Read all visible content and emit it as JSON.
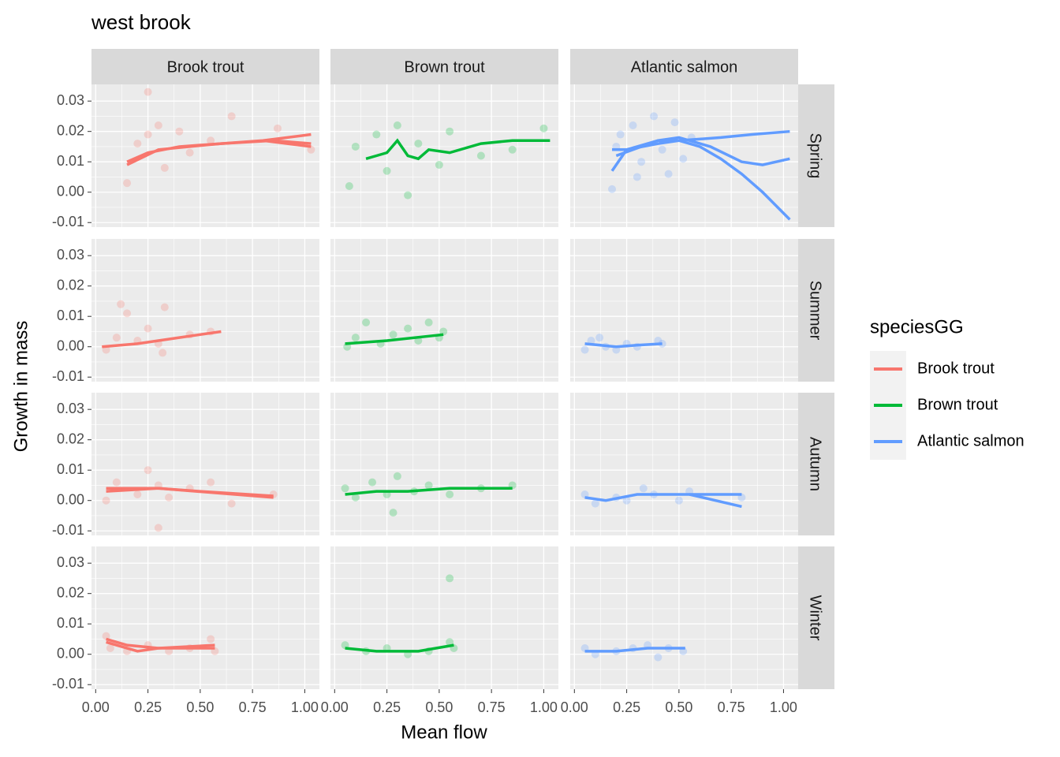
{
  "chart_data": {
    "type": "line",
    "title": "west brook",
    "x_label": "Mean flow",
    "y_label": "Growth in mass",
    "legend_title": "speciesGG",
    "columns": [
      "Brook trout",
      "Brown trout",
      "Atlantic salmon"
    ],
    "rows": [
      "Spring",
      "Summer",
      "Autumn",
      "Winter"
    ],
    "series": [
      {
        "name": "Brook trout",
        "color": "#F8766D"
      },
      {
        "name": "Brown trout",
        "color": "#00BA38"
      },
      {
        "name": "Atlantic salmon",
        "color": "#619CFF"
      }
    ],
    "xlim": [
      -0.02,
      1.07
    ],
    "ylim": [
      -0.0115,
      0.0355
    ],
    "xticks": [
      {
        "value": 0,
        "label": "0.00"
      },
      0.25,
      {
        "value": 0.5,
        "label": "0.50"
      },
      0.75,
      {
        "value": 1,
        "label": "1.00"
      }
    ],
    "yticks": [
      -0.01,
      {
        "value": 0,
        "label": "0.00"
      },
      0.01,
      0.02,
      0.03
    ],
    "grid": true,
    "panels": [
      {
        "lines": [
          {
            "x": [
              0.15,
              0.25,
              0.4,
              0.6,
              0.8,
              1.03
            ],
            "y": [
              0.01,
              0.013,
              0.015,
              0.016,
              0.017,
              0.019
            ]
          },
          {
            "x": [
              0.15,
              0.3,
              0.6,
              0.85,
              1.03
            ],
            "y": [
              0.009,
              0.014,
              0.016,
              0.017,
              0.016
            ]
          },
          {
            "x": [
              0.8,
              1.03
            ],
            "y": [
              0.017,
              0.015
            ]
          }
        ],
        "points": {
          "x": [
            0.15,
            0.2,
            0.25,
            0.3,
            0.33,
            0.4,
            0.45,
            0.55,
            0.65,
            0.87,
            1.03,
            0.25
          ],
          "y": [
            0.003,
            0.016,
            0.019,
            0.022,
            0.008,
            0.02,
            0.013,
            0.017,
            0.025,
            0.021,
            0.014,
            0.033
          ]
        }
      },
      {
        "lines": [
          {
            "x": [
              0.15,
              0.2,
              0.25,
              0.3,
              0.35,
              0.4,
              0.45,
              0.55,
              0.7,
              0.85,
              1.03
            ],
            "y": [
              0.011,
              0.012,
              0.013,
              0.017,
              0.012,
              0.011,
              0.014,
              0.013,
              0.016,
              0.017,
              0.017
            ]
          }
        ],
        "points": {
          "x": [
            0.07,
            0.1,
            0.2,
            0.25,
            0.3,
            0.4,
            0.5,
            0.55,
            0.7,
            0.85,
            1.0,
            0.35
          ],
          "y": [
            0.002,
            0.015,
            0.019,
            0.007,
            0.022,
            0.016,
            0.009,
            0.02,
            0.012,
            0.014,
            0.021,
            -0.001
          ]
        }
      },
      {
        "lines": [
          {
            "x": [
              0.18,
              0.25,
              0.4,
              0.5,
              0.7,
              0.85,
              1.03
            ],
            "y": [
              0.014,
              0.014,
              0.016,
              0.017,
              0.018,
              0.019,
              0.02
            ]
          },
          {
            "x": [
              0.18,
              0.25,
              0.4,
              0.5,
              0.6,
              0.7,
              0.8,
              0.9,
              1.03
            ],
            "y": [
              0.007,
              0.014,
              0.017,
              0.017,
              0.015,
              0.011,
              0.006,
              0.0,
              -0.009
            ]
          },
          {
            "x": [
              0.2,
              0.4,
              0.5,
              0.65,
              0.8,
              0.9,
              1.03
            ],
            "y": [
              0.012,
              0.017,
              0.018,
              0.015,
              0.01,
              0.009,
              0.011
            ]
          }
        ],
        "points": {
          "x": [
            0.18,
            0.22,
            0.28,
            0.32,
            0.38,
            0.42,
            0.48,
            0.52,
            0.56,
            0.3,
            0.45,
            0.2
          ],
          "y": [
            0.001,
            0.019,
            0.022,
            0.01,
            0.025,
            0.014,
            0.023,
            0.011,
            0.018,
            0.005,
            0.006,
            0.015
          ]
        }
      },
      {
        "lines": [
          {
            "x": [
              0.03,
              0.2,
              0.4,
              0.6
            ],
            "y": [
              0.0,
              0.001,
              0.003,
              0.005
            ]
          }
        ],
        "points": {
          "x": [
            0.05,
            0.1,
            0.15,
            0.2,
            0.25,
            0.3,
            0.33,
            0.45,
            0.55,
            0.12,
            0.32
          ],
          "y": [
            -0.001,
            0.003,
            0.011,
            0.002,
            0.006,
            0.001,
            0.013,
            0.004,
            0.005,
            0.014,
            -0.002
          ]
        }
      },
      {
        "lines": [
          {
            "x": [
              0.05,
              0.25,
              0.52
            ],
            "y": [
              0.001,
              0.002,
              0.004
            ]
          }
        ],
        "points": {
          "x": [
            0.06,
            0.1,
            0.15,
            0.22,
            0.28,
            0.35,
            0.4,
            0.45,
            0.5,
            0.52
          ],
          "y": [
            0.0,
            0.003,
            0.008,
            0.001,
            0.004,
            0.006,
            0.002,
            0.008,
            0.003,
            0.005
          ]
        }
      },
      {
        "lines": [
          {
            "x": [
              0.05,
              0.2,
              0.3,
              0.42
            ],
            "y": [
              0.001,
              0.0,
              0.0005,
              0.001
            ]
          }
        ],
        "points": {
          "x": [
            0.05,
            0.08,
            0.12,
            0.15,
            0.2,
            0.25,
            0.3,
            0.4,
            0.42
          ],
          "y": [
            -0.001,
            0.002,
            0.003,
            0.0,
            -0.001,
            0.001,
            0.0,
            0.002,
            0.001
          ]
        }
      },
      {
        "lines": [
          {
            "x": [
              0.05,
              0.3,
              0.5,
              0.85
            ],
            "y": [
              0.004,
              0.004,
              0.003,
              0.0015
            ]
          },
          {
            "x": [
              0.05,
              0.3,
              0.85
            ],
            "y": [
              0.003,
              0.004,
              0.001
            ]
          }
        ],
        "points": {
          "x": [
            0.05,
            0.1,
            0.2,
            0.25,
            0.3,
            0.35,
            0.45,
            0.55,
            0.65,
            0.85,
            0.3
          ],
          "y": [
            0.0,
            0.006,
            0.002,
            0.01,
            0.005,
            0.001,
            0.004,
            0.006,
            -0.001,
            0.002,
            -0.009
          ]
        }
      },
      {
        "lines": [
          {
            "x": [
              0.05,
              0.2,
              0.35,
              0.55,
              0.85
            ],
            "y": [
              0.002,
              0.003,
              0.003,
              0.004,
              0.004
            ]
          }
        ],
        "points": {
          "x": [
            0.05,
            0.1,
            0.18,
            0.25,
            0.3,
            0.38,
            0.45,
            0.55,
            0.7,
            0.85,
            0.28
          ],
          "y": [
            0.004,
            0.001,
            0.006,
            0.002,
            0.008,
            0.003,
            0.005,
            0.002,
            0.004,
            0.005,
            -0.004
          ]
        }
      },
      {
        "lines": [
          {
            "x": [
              0.05,
              0.15,
              0.3,
              0.5,
              0.8
            ],
            "y": [
              0.001,
              0.0,
              0.002,
              0.002,
              0.002
            ]
          },
          {
            "x": [
              0.55,
              0.8
            ],
            "y": [
              0.002,
              -0.002
            ]
          }
        ],
        "points": {
          "x": [
            0.05,
            0.1,
            0.2,
            0.25,
            0.33,
            0.38,
            0.5,
            0.55,
            0.8
          ],
          "y": [
            0.002,
            -0.001,
            0.001,
            0.0,
            0.004,
            0.002,
            0.0,
            0.003,
            0.001
          ]
        }
      },
      {
        "lines": [
          {
            "x": [
              0.05,
              0.1,
              0.2,
              0.3,
              0.57
            ],
            "y": [
              0.004,
              0.003,
              0.001,
              0.002,
              0.003
            ]
          },
          {
            "x": [
              0.05,
              0.15,
              0.3,
              0.57
            ],
            "y": [
              0.005,
              0.003,
              0.002,
              0.002
            ]
          }
        ],
        "points": {
          "x": [
            0.05,
            0.07,
            0.15,
            0.25,
            0.35,
            0.45,
            0.55,
            0.57
          ],
          "y": [
            0.006,
            0.002,
            0.001,
            0.003,
            0.001,
            0.002,
            0.005,
            0.001
          ]
        }
      },
      {
        "lines": [
          {
            "x": [
              0.05,
              0.2,
              0.4,
              0.57
            ],
            "y": [
              0.002,
              0.001,
              0.001,
              0.003
            ]
          }
        ],
        "points": {
          "x": [
            0.05,
            0.15,
            0.25,
            0.35,
            0.45,
            0.55,
            0.57,
            0.55
          ],
          "y": [
            0.003,
            0.001,
            0.002,
            0.0,
            0.001,
            0.004,
            0.002,
            0.025
          ]
        }
      },
      {
        "lines": [
          {
            "x": [
              0.05,
              0.2,
              0.35,
              0.53
            ],
            "y": [
              0.001,
              0.001,
              0.002,
              0.002
            ]
          }
        ],
        "points": {
          "x": [
            0.05,
            0.1,
            0.2,
            0.28,
            0.35,
            0.4,
            0.45,
            0.52
          ],
          "y": [
            0.002,
            0.0,
            0.001,
            0.002,
            0.003,
            -0.001,
            0.002,
            0.001
          ]
        }
      }
    ]
  }
}
